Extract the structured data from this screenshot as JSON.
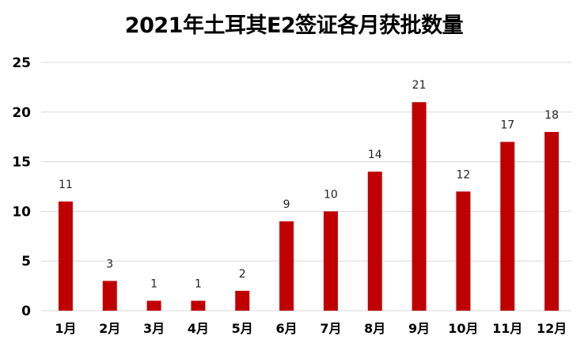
{
  "chart_data": {
    "type": "bar",
    "title": "2021年土耳其E2签证各月获批数量",
    "categories": [
      "1月",
      "2月",
      "3月",
      "4月",
      "5月",
      "6月",
      "7月",
      "8月",
      "9月",
      "10月",
      "11月",
      "12月"
    ],
    "values": [
      11,
      3,
      1,
      1,
      2,
      9,
      10,
      14,
      21,
      12,
      17,
      18
    ],
    "ylim": [
      0,
      25
    ],
    "yticks": [
      0,
      5,
      10,
      15,
      20,
      25
    ],
    "grid": true,
    "bar_color": "#c00000",
    "grid_color": "#d9d9d9"
  }
}
